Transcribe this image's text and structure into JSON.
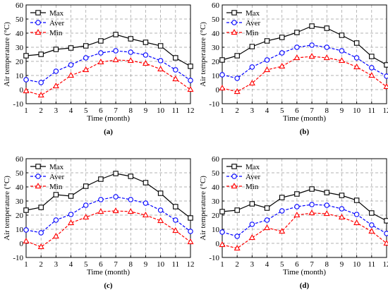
{
  "chart_data": [
    {
      "type": "line",
      "panel_label": "(a)",
      "xlabel": "Time (month)",
      "ylabel": "Air temperature (°C)",
      "x": [
        1,
        2,
        3,
        4,
        5,
        6,
        7,
        8,
        9,
        10,
        11,
        12
      ],
      "xlim": [
        1,
        12
      ],
      "ylim": [
        -10,
        60
      ],
      "yticks": [
        -10,
        0,
        10,
        20,
        30,
        40,
        50,
        60
      ],
      "grid": true,
      "legend": "top-left",
      "series": [
        {
          "name": "Max",
          "color": "#000000",
          "marker": "square",
          "values": [
            24,
            25,
            28.5,
            29.5,
            31,
            34.5,
            39,
            36,
            33.5,
            31,
            22.5,
            16.5
          ]
        },
        {
          "name": "Aver",
          "color": "#0000ff",
          "marker": "circle",
          "values": [
            7,
            5,
            13,
            17.5,
            22.5,
            26,
            27.5,
            26.5,
            24.5,
            20.5,
            14,
            6.5
          ]
        },
        {
          "name": "Min",
          "color": "#ff0000",
          "marker": "triangle",
          "values": [
            -1,
            -4,
            2.5,
            10,
            14,
            19.5,
            21,
            20.5,
            18.5,
            14.5,
            7.5,
            0
          ]
        }
      ]
    },
    {
      "type": "line",
      "panel_label": "(b)",
      "xlabel": "Time (month)",
      "ylabel": "Air temperature (°C)",
      "x": [
        1,
        2,
        3,
        4,
        5,
        6,
        7,
        8,
        9,
        10,
        11,
        12
      ],
      "xlim": [
        1,
        12
      ],
      "ylim": [
        -10,
        60
      ],
      "yticks": [
        -10,
        0,
        10,
        20,
        30,
        40,
        50,
        60
      ],
      "grid": true,
      "legend": "top-left",
      "series": [
        {
          "name": "Max",
          "color": "#000000",
          "marker": "square",
          "values": [
            21,
            24,
            30.5,
            34.5,
            37,
            40.5,
            45,
            43.5,
            38.5,
            33,
            23.5,
            17.5
          ]
        },
        {
          "name": "Aver",
          "color": "#0000ff",
          "marker": "circle",
          "values": [
            10.5,
            8,
            16,
            21,
            26,
            30,
            31.5,
            30,
            27.5,
            22.5,
            15.5,
            9.5
          ]
        },
        {
          "name": "Min",
          "color": "#ff0000",
          "marker": "triangle",
          "values": [
            1,
            -1.5,
            4.5,
            14,
            16.5,
            22.5,
            23.5,
            22.5,
            20.5,
            16,
            10,
            2
          ]
        }
      ]
    },
    {
      "type": "line",
      "panel_label": "(c)",
      "xlabel": "Time (month)",
      "ylabel": "Air temperature (°C)",
      "x": [
        1,
        2,
        3,
        4,
        5,
        6,
        7,
        8,
        9,
        10,
        11,
        12
      ],
      "xlim": [
        1,
        12
      ],
      "ylim": [
        -10,
        60
      ],
      "yticks": [
        -10,
        0,
        10,
        20,
        30,
        40,
        50,
        60
      ],
      "grid": true,
      "legend": "top-left",
      "series": [
        {
          "name": "Max",
          "color": "#000000",
          "marker": "square",
          "values": [
            23.5,
            25.5,
            34.5,
            33.5,
            40.5,
            45.5,
            49.5,
            47.5,
            43,
            35.5,
            26,
            18
          ]
        },
        {
          "name": "Aver",
          "color": "#0000ff",
          "marker": "circle",
          "values": [
            9.5,
            7.5,
            16.5,
            20.5,
            27,
            31,
            33,
            31,
            28.5,
            23.5,
            16.5,
            8.5
          ]
        },
        {
          "name": "Min",
          "color": "#ff0000",
          "marker": "triangle",
          "values": [
            1.5,
            -2.5,
            5,
            14.5,
            18.5,
            22.5,
            23,
            22.5,
            20,
            16,
            9,
            1
          ]
        }
      ]
    },
    {
      "type": "line",
      "panel_label": "(d)",
      "xlabel": "Time (month)",
      "ylabel": "Air temperature (°C)",
      "x": [
        1,
        2,
        3,
        4,
        5,
        6,
        7,
        8,
        9,
        10,
        11,
        12
      ],
      "xlim": [
        1,
        12
      ],
      "ylim": [
        -10,
        60
      ],
      "yticks": [
        -10,
        0,
        10,
        20,
        30,
        40,
        50,
        60
      ],
      "grid": true,
      "legend": "top-left",
      "series": [
        {
          "name": "Max",
          "color": "#000000",
          "marker": "square",
          "values": [
            22.5,
            23.5,
            28,
            25,
            32.5,
            35,
            38.5,
            36,
            34,
            30.5,
            21.5,
            16
          ]
        },
        {
          "name": "Aver",
          "color": "#0000ff",
          "marker": "circle",
          "values": [
            8,
            5,
            13.5,
            16.5,
            23,
            26,
            27.5,
            27,
            24.5,
            20.5,
            13,
            7
          ]
        },
        {
          "name": "Min",
          "color": "#ff0000",
          "marker": "triangle",
          "values": [
            -1,
            -3.5,
            4,
            11,
            8.5,
            20,
            21.5,
            21,
            18.5,
            14.5,
            8.5,
            0
          ]
        }
      ]
    }
  ]
}
